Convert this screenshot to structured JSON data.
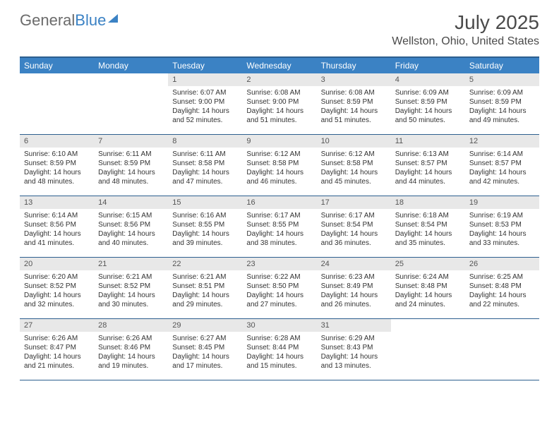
{
  "brand": {
    "name_part1": "General",
    "name_part2": "Blue"
  },
  "title": "July 2025",
  "location": "Wellston, Ohio, United States",
  "weekdays": [
    "Sunday",
    "Monday",
    "Tuesday",
    "Wednesday",
    "Thursday",
    "Friday",
    "Saturday"
  ],
  "colors": {
    "header_bar": "#3b82c4",
    "row_divider": "#2d5f8f",
    "daynum_bg": "#e8e8e8",
    "text": "#333333"
  },
  "weeks": [
    [
      null,
      null,
      {
        "n": "1",
        "sr": "Sunrise: 6:07 AM",
        "ss": "Sunset: 9:00 PM",
        "dl": "Daylight: 14 hours and 52 minutes."
      },
      {
        "n": "2",
        "sr": "Sunrise: 6:08 AM",
        "ss": "Sunset: 9:00 PM",
        "dl": "Daylight: 14 hours and 51 minutes."
      },
      {
        "n": "3",
        "sr": "Sunrise: 6:08 AM",
        "ss": "Sunset: 8:59 PM",
        "dl": "Daylight: 14 hours and 51 minutes."
      },
      {
        "n": "4",
        "sr": "Sunrise: 6:09 AM",
        "ss": "Sunset: 8:59 PM",
        "dl": "Daylight: 14 hours and 50 minutes."
      },
      {
        "n": "5",
        "sr": "Sunrise: 6:09 AM",
        "ss": "Sunset: 8:59 PM",
        "dl": "Daylight: 14 hours and 49 minutes."
      }
    ],
    [
      {
        "n": "6",
        "sr": "Sunrise: 6:10 AM",
        "ss": "Sunset: 8:59 PM",
        "dl": "Daylight: 14 hours and 48 minutes."
      },
      {
        "n": "7",
        "sr": "Sunrise: 6:11 AM",
        "ss": "Sunset: 8:59 PM",
        "dl": "Daylight: 14 hours and 48 minutes."
      },
      {
        "n": "8",
        "sr": "Sunrise: 6:11 AM",
        "ss": "Sunset: 8:58 PM",
        "dl": "Daylight: 14 hours and 47 minutes."
      },
      {
        "n": "9",
        "sr": "Sunrise: 6:12 AM",
        "ss": "Sunset: 8:58 PM",
        "dl": "Daylight: 14 hours and 46 minutes."
      },
      {
        "n": "10",
        "sr": "Sunrise: 6:12 AM",
        "ss": "Sunset: 8:58 PM",
        "dl": "Daylight: 14 hours and 45 minutes."
      },
      {
        "n": "11",
        "sr": "Sunrise: 6:13 AM",
        "ss": "Sunset: 8:57 PM",
        "dl": "Daylight: 14 hours and 44 minutes."
      },
      {
        "n": "12",
        "sr": "Sunrise: 6:14 AM",
        "ss": "Sunset: 8:57 PM",
        "dl": "Daylight: 14 hours and 42 minutes."
      }
    ],
    [
      {
        "n": "13",
        "sr": "Sunrise: 6:14 AM",
        "ss": "Sunset: 8:56 PM",
        "dl": "Daylight: 14 hours and 41 minutes."
      },
      {
        "n": "14",
        "sr": "Sunrise: 6:15 AM",
        "ss": "Sunset: 8:56 PM",
        "dl": "Daylight: 14 hours and 40 minutes."
      },
      {
        "n": "15",
        "sr": "Sunrise: 6:16 AM",
        "ss": "Sunset: 8:55 PM",
        "dl": "Daylight: 14 hours and 39 minutes."
      },
      {
        "n": "16",
        "sr": "Sunrise: 6:17 AM",
        "ss": "Sunset: 8:55 PM",
        "dl": "Daylight: 14 hours and 38 minutes."
      },
      {
        "n": "17",
        "sr": "Sunrise: 6:17 AM",
        "ss": "Sunset: 8:54 PM",
        "dl": "Daylight: 14 hours and 36 minutes."
      },
      {
        "n": "18",
        "sr": "Sunrise: 6:18 AM",
        "ss": "Sunset: 8:54 PM",
        "dl": "Daylight: 14 hours and 35 minutes."
      },
      {
        "n": "19",
        "sr": "Sunrise: 6:19 AM",
        "ss": "Sunset: 8:53 PM",
        "dl": "Daylight: 14 hours and 33 minutes."
      }
    ],
    [
      {
        "n": "20",
        "sr": "Sunrise: 6:20 AM",
        "ss": "Sunset: 8:52 PM",
        "dl": "Daylight: 14 hours and 32 minutes."
      },
      {
        "n": "21",
        "sr": "Sunrise: 6:21 AM",
        "ss": "Sunset: 8:52 PM",
        "dl": "Daylight: 14 hours and 30 minutes."
      },
      {
        "n": "22",
        "sr": "Sunrise: 6:21 AM",
        "ss": "Sunset: 8:51 PM",
        "dl": "Daylight: 14 hours and 29 minutes."
      },
      {
        "n": "23",
        "sr": "Sunrise: 6:22 AM",
        "ss": "Sunset: 8:50 PM",
        "dl": "Daylight: 14 hours and 27 minutes."
      },
      {
        "n": "24",
        "sr": "Sunrise: 6:23 AM",
        "ss": "Sunset: 8:49 PM",
        "dl": "Daylight: 14 hours and 26 minutes."
      },
      {
        "n": "25",
        "sr": "Sunrise: 6:24 AM",
        "ss": "Sunset: 8:48 PM",
        "dl": "Daylight: 14 hours and 24 minutes."
      },
      {
        "n": "26",
        "sr": "Sunrise: 6:25 AM",
        "ss": "Sunset: 8:48 PM",
        "dl": "Daylight: 14 hours and 22 minutes."
      }
    ],
    [
      {
        "n": "27",
        "sr": "Sunrise: 6:26 AM",
        "ss": "Sunset: 8:47 PM",
        "dl": "Daylight: 14 hours and 21 minutes."
      },
      {
        "n": "28",
        "sr": "Sunrise: 6:26 AM",
        "ss": "Sunset: 8:46 PM",
        "dl": "Daylight: 14 hours and 19 minutes."
      },
      {
        "n": "29",
        "sr": "Sunrise: 6:27 AM",
        "ss": "Sunset: 8:45 PM",
        "dl": "Daylight: 14 hours and 17 minutes."
      },
      {
        "n": "30",
        "sr": "Sunrise: 6:28 AM",
        "ss": "Sunset: 8:44 PM",
        "dl": "Daylight: 14 hours and 15 minutes."
      },
      {
        "n": "31",
        "sr": "Sunrise: 6:29 AM",
        "ss": "Sunset: 8:43 PM",
        "dl": "Daylight: 14 hours and 13 minutes."
      },
      null,
      null
    ]
  ]
}
